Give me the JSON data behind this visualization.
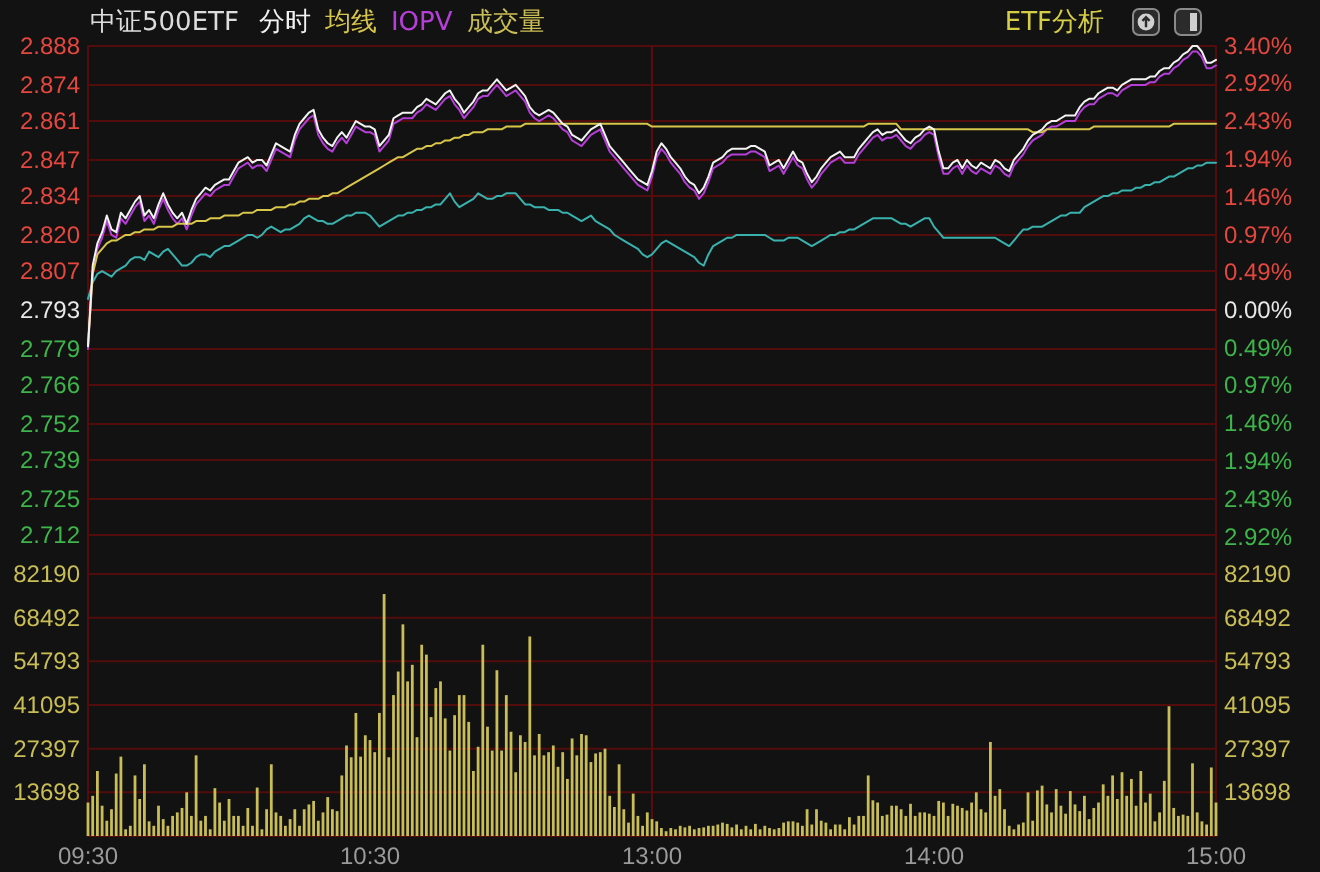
{
  "chart_data": [
    {
      "type": "line",
      "title": "中证500ETF",
      "annotations": [
        "ETF分析"
      ],
      "categories": [
        "09:30",
        null,
        null,
        null,
        null,
        null,
        null,
        null,
        null,
        null,
        null,
        null,
        null,
        null,
        null,
        null,
        null,
        null,
        null,
        null,
        null,
        null,
        null,
        null,
        null,
        null,
        null,
        null,
        null,
        null,
        null,
        null,
        null,
        null,
        null,
        null,
        null,
        null,
        null,
        null,
        null,
        null,
        null,
        null,
        null,
        null,
        null,
        null,
        null,
        null,
        null,
        null,
        null,
        null,
        null,
        null,
        null,
        null,
        null,
        null,
        "10:30",
        null,
        null,
        null,
        null,
        null,
        null,
        null,
        null,
        null,
        null,
        null,
        null,
        null,
        null,
        null,
        null,
        null,
        null,
        null,
        null,
        null,
        null,
        null,
        null,
        null,
        null,
        null,
        null,
        null,
        null,
        null,
        null,
        null,
        null,
        null,
        null,
        null,
        null,
        null,
        null,
        null,
        null,
        null,
        null,
        null,
        null,
        null,
        null,
        null,
        null,
        null,
        null,
        null,
        null,
        null,
        null,
        null,
        null,
        null,
        "13:00",
        null,
        null,
        null,
        null,
        null,
        null,
        null,
        null,
        null,
        null,
        null,
        null,
        null,
        null,
        null,
        null,
        null,
        null,
        null,
        null,
        null,
        null,
        null,
        null,
        null,
        null,
        null,
        null,
        null,
        null,
        null,
        null,
        null,
        null,
        null,
        null,
        null,
        null,
        null,
        null,
        null,
        null,
        null,
        null,
        null,
        null,
        null,
        null,
        null,
        null,
        null,
        null,
        null,
        null,
        null,
        null,
        null,
        null,
        null,
        "14:00",
        null,
        null,
        null,
        null,
        null,
        null,
        null,
        null,
        null,
        null,
        null,
        null,
        null,
        null,
        null,
        null,
        null,
        null,
        null,
        null,
        null,
        null,
        null,
        null,
        null,
        null,
        null,
        null,
        null,
        null,
        null,
        null,
        null,
        null,
        null,
        null,
        null,
        null,
        null,
        null,
        null,
        null,
        null,
        null,
        null,
        null,
        null,
        null,
        null,
        null,
        null,
        null,
        null,
        null,
        null,
        null,
        null,
        null,
        null,
        "15:00"
      ],
      "series": [
        {
          "name": "分时",
          "color": "#f2f2f2",
          "values": [
            2.78,
            2.809,
            2.817,
            2.821,
            2.827,
            2.822,
            2.821,
            2.828,
            2.826,
            2.829,
            2.832,
            2.834,
            2.827,
            2.829,
            2.826,
            2.831,
            2.835,
            2.831,
            2.828,
            2.826,
            2.828,
            2.824,
            2.829,
            2.833,
            2.835,
            2.837,
            2.836,
            2.838,
            2.839,
            2.84,
            2.84,
            2.843,
            2.846,
            2.847,
            2.848,
            2.846,
            2.847,
            2.847,
            2.845,
            2.849,
            2.853,
            2.852,
            2.851,
            2.85,
            2.856,
            2.86,
            2.862,
            2.864,
            2.865,
            2.858,
            2.855,
            2.853,
            2.852,
            2.855,
            2.857,
            2.855,
            2.858,
            2.861,
            2.86,
            2.859,
            2.859,
            2.858,
            2.852,
            2.854,
            2.856,
            2.862,
            2.863,
            2.864,
            2.864,
            2.864,
            2.866,
            2.867,
            2.869,
            2.868,
            2.867,
            2.869,
            2.871,
            2.872,
            2.869,
            2.867,
            2.864,
            2.866,
            2.868,
            2.871,
            2.872,
            2.872,
            2.874,
            2.876,
            2.874,
            2.872,
            2.873,
            2.874,
            2.872,
            2.87,
            2.866,
            2.864,
            2.863,
            2.864,
            2.865,
            2.864,
            2.862,
            2.86,
            2.859,
            2.856,
            2.855,
            2.854,
            2.856,
            2.858,
            2.859,
            2.86,
            2.856,
            2.852,
            2.85,
            2.848,
            2.846,
            2.844,
            2.842,
            2.84,
            2.839,
            2.838,
            2.843,
            2.85,
            2.853,
            2.851,
            2.848,
            2.846,
            2.844,
            2.841,
            2.839,
            2.838,
            2.835,
            2.837,
            2.841,
            2.846,
            2.847,
            2.848,
            2.85,
            2.851,
            2.851,
            2.851,
            2.851,
            2.852,
            2.852,
            2.851,
            2.85,
            2.845,
            2.846,
            2.847,
            2.844,
            2.847,
            2.85,
            2.847,
            2.846,
            2.842,
            2.839,
            2.841,
            2.844,
            2.846,
            2.848,
            2.849,
            2.85,
            2.848,
            2.848,
            2.848,
            2.851,
            2.853,
            2.855,
            2.857,
            2.858,
            2.856,
            2.857,
            2.857,
            2.858,
            2.856,
            2.854,
            2.853,
            2.855,
            2.856,
            2.858,
            2.859,
            2.858,
            2.85,
            2.844,
            2.844,
            2.846,
            2.847,
            2.844,
            2.847,
            2.845,
            2.844,
            2.846,
            2.845,
            2.844,
            2.847,
            2.846,
            2.844,
            2.843,
            2.847,
            2.849,
            2.851,
            2.854,
            2.856,
            2.857,
            2.858,
            2.86,
            2.861,
            2.861,
            2.862,
            2.863,
            2.863,
            2.863,
            2.866,
            2.868,
            2.869,
            2.869,
            2.871,
            2.872,
            2.873,
            2.873,
            2.872,
            2.874,
            2.875,
            2.876,
            2.876,
            2.876,
            2.876,
            2.877,
            2.877,
            2.879,
            2.88,
            2.88,
            2.882,
            2.883,
            2.885,
            2.886,
            2.888,
            2.888,
            2.886,
            2.882,
            2.882,
            2.883
          ]
        },
        {
          "name": "均线",
          "color": "#d8c64a",
          "values": [
            2.78,
            2.806,
            2.813,
            2.815,
            2.817,
            2.818,
            2.818,
            2.819,
            2.82,
            2.82,
            2.821,
            2.821,
            2.822,
            2.822,
            2.822,
            2.823,
            2.823,
            2.823,
            2.823,
            2.824,
            2.824,
            2.824,
            2.824,
            2.825,
            2.825,
            2.825,
            2.826,
            2.826,
            2.826,
            2.827,
            2.827,
            2.827,
            2.827,
            2.828,
            2.828,
            2.828,
            2.829,
            2.829,
            2.829,
            2.829,
            2.83,
            2.83,
            2.83,
            2.831,
            2.831,
            2.832,
            2.832,
            2.833,
            2.833,
            2.833,
            2.834,
            2.834,
            2.835,
            2.835,
            2.836,
            2.837,
            2.838,
            2.839,
            2.84,
            2.841,
            2.842,
            2.843,
            2.844,
            2.845,
            2.846,
            2.847,
            2.848,
            2.848,
            2.849,
            2.85,
            2.851,
            2.851,
            2.852,
            2.852,
            2.853,
            2.853,
            2.854,
            2.854,
            2.855,
            2.855,
            2.856,
            2.856,
            2.857,
            2.857,
            2.857,
            2.858,
            2.858,
            2.858,
            2.858,
            2.859,
            2.859,
            2.859,
            2.859,
            2.86,
            2.86,
            2.86,
            2.86,
            2.86,
            2.86,
            2.86,
            2.86,
            2.86,
            2.86,
            2.86,
            2.86,
            2.86,
            2.86,
            2.86,
            2.86,
            2.86,
            2.86,
            2.86,
            2.86,
            2.86,
            2.86,
            2.86,
            2.86,
            2.86,
            2.86,
            2.86,
            2.859,
            2.859,
            2.859,
            2.859,
            2.859,
            2.859,
            2.859,
            2.859,
            2.859,
            2.859,
            2.859,
            2.859,
            2.859,
            2.859,
            2.859,
            2.859,
            2.859,
            2.859,
            2.859,
            2.859,
            2.859,
            2.859,
            2.859,
            2.859,
            2.859,
            2.859,
            2.859,
            2.859,
            2.859,
            2.859,
            2.859,
            2.859,
            2.859,
            2.859,
            2.859,
            2.859,
            2.859,
            2.859,
            2.859,
            2.859,
            2.859,
            2.859,
            2.859,
            2.859,
            2.859,
            2.859,
            2.86,
            2.86,
            2.86,
            2.86,
            2.86,
            2.86,
            2.86,
            2.858,
            2.858,
            2.858,
            2.858,
            2.858,
            2.858,
            2.858,
            2.858,
            2.858,
            2.858,
            2.858,
            2.858,
            2.858,
            2.858,
            2.858,
            2.858,
            2.858,
            2.858,
            2.858,
            2.858,
            2.858,
            2.858,
            2.858,
            2.858,
            2.858,
            2.858,
            2.858,
            2.858,
            2.857,
            2.857,
            2.857,
            2.858,
            2.858,
            2.858,
            2.858,
            2.858,
            2.858,
            2.858,
            2.858,
            2.858,
            2.858,
            2.859,
            2.859,
            2.859,
            2.859,
            2.859,
            2.859,
            2.859,
            2.859,
            2.859,
            2.859,
            2.859,
            2.859,
            2.859,
            2.859,
            2.859,
            2.859,
            2.859,
            2.86,
            2.86,
            2.86,
            2.86,
            2.86,
            2.86,
            2.86,
            2.86,
            2.86,
            2.86
          ]
        },
        {
          "name": "IOPV",
          "color": "#b53fd8",
          "values": [
            2.779,
            2.807,
            2.815,
            2.819,
            2.825,
            2.82,
            2.819,
            2.826,
            2.824,
            2.827,
            2.83,
            2.832,
            2.825,
            2.827,
            2.824,
            2.829,
            2.833,
            2.829,
            2.826,
            2.824,
            2.826,
            2.822,
            2.827,
            2.831,
            2.833,
            2.835,
            2.834,
            2.836,
            2.837,
            2.838,
            2.838,
            2.841,
            2.844,
            2.845,
            2.846,
            2.844,
            2.845,
            2.845,
            2.843,
            2.847,
            2.851,
            2.85,
            2.849,
            2.848,
            2.854,
            2.858,
            2.86,
            2.862,
            2.863,
            2.856,
            2.853,
            2.851,
            2.85,
            2.853,
            2.855,
            2.853,
            2.856,
            2.859,
            2.858,
            2.857,
            2.857,
            2.856,
            2.85,
            2.852,
            2.854,
            2.86,
            2.861,
            2.862,
            2.862,
            2.862,
            2.864,
            2.865,
            2.867,
            2.866,
            2.865,
            2.867,
            2.869,
            2.87,
            2.867,
            2.865,
            2.862,
            2.864,
            2.866,
            2.869,
            2.87,
            2.87,
            2.872,
            2.874,
            2.872,
            2.87,
            2.871,
            2.872,
            2.87,
            2.868,
            2.864,
            2.862,
            2.861,
            2.862,
            2.863,
            2.862,
            2.86,
            2.858,
            2.857,
            2.854,
            2.853,
            2.852,
            2.854,
            2.856,
            2.857,
            2.858,
            2.854,
            2.85,
            2.848,
            2.846,
            2.844,
            2.842,
            2.84,
            2.838,
            2.837,
            2.836,
            2.841,
            2.848,
            2.851,
            2.849,
            2.846,
            2.844,
            2.842,
            2.839,
            2.837,
            2.836,
            2.833,
            2.835,
            2.839,
            2.844,
            2.845,
            2.846,
            2.848,
            2.849,
            2.849,
            2.849,
            2.849,
            2.85,
            2.85,
            2.849,
            2.848,
            2.843,
            2.844,
            2.845,
            2.842,
            2.845,
            2.848,
            2.845,
            2.844,
            2.84,
            2.837,
            2.839,
            2.842,
            2.844,
            2.846,
            2.847,
            2.848,
            2.846,
            2.846,
            2.846,
            2.849,
            2.851,
            2.853,
            2.855,
            2.856,
            2.854,
            2.855,
            2.855,
            2.856,
            2.854,
            2.852,
            2.851,
            2.853,
            2.854,
            2.856,
            2.857,
            2.856,
            2.848,
            2.842,
            2.842,
            2.844,
            2.845,
            2.842,
            2.845,
            2.843,
            2.842,
            2.844,
            2.843,
            2.842,
            2.845,
            2.844,
            2.842,
            2.841,
            2.845,
            2.847,
            2.849,
            2.852,
            2.854,
            2.855,
            2.856,
            2.858,
            2.859,
            2.859,
            2.86,
            2.861,
            2.861,
            2.861,
            2.864,
            2.866,
            2.867,
            2.867,
            2.869,
            2.87,
            2.871,
            2.871,
            2.87,
            2.872,
            2.873,
            2.874,
            2.874,
            2.874,
            2.874,
            2.875,
            2.875,
            2.877,
            2.878,
            2.878,
            2.88,
            2.881,
            2.883,
            2.884,
            2.886,
            2.886,
            2.884,
            2.88,
            2.88,
            2.881
          ]
        },
        {
          "color": "#39b2ae",
          "values": [
            2.797,
            2.803,
            2.806,
            2.807,
            2.806,
            2.805,
            2.807,
            2.808,
            2.809,
            2.811,
            2.812,
            2.812,
            2.811,
            2.814,
            2.813,
            2.812,
            2.814,
            2.815,
            2.813,
            2.811,
            2.809,
            2.809,
            2.81,
            2.812,
            2.813,
            2.813,
            2.812,
            2.814,
            2.815,
            2.816,
            2.816,
            2.817,
            2.818,
            2.819,
            2.82,
            2.82,
            2.819,
            2.82,
            2.822,
            2.823,
            2.822,
            2.821,
            2.822,
            2.822,
            2.823,
            2.824,
            2.826,
            2.827,
            2.826,
            2.825,
            2.825,
            2.824,
            2.824,
            2.825,
            2.826,
            2.827,
            2.827,
            2.828,
            2.828,
            2.828,
            2.827,
            2.825,
            2.823,
            2.824,
            2.825,
            2.826,
            2.827,
            2.827,
            2.828,
            2.828,
            2.829,
            2.829,
            2.83,
            2.83,
            2.831,
            2.831,
            2.833,
            2.835,
            2.832,
            2.83,
            2.831,
            2.832,
            2.833,
            2.835,
            2.834,
            2.833,
            2.833,
            2.834,
            2.834,
            2.835,
            2.835,
            2.835,
            2.833,
            2.831,
            2.831,
            2.83,
            2.83,
            2.83,
            2.829,
            2.829,
            2.829,
            2.828,
            2.828,
            2.827,
            2.826,
            2.825,
            2.826,
            2.827,
            2.825,
            2.824,
            2.823,
            2.822,
            2.82,
            2.819,
            2.818,
            2.817,
            2.816,
            2.815,
            2.813,
            2.812,
            2.813,
            2.815,
            2.817,
            2.818,
            2.817,
            2.816,
            2.815,
            2.814,
            2.813,
            2.812,
            2.81,
            2.809,
            2.813,
            2.816,
            2.817,
            2.818,
            2.819,
            2.819,
            2.82,
            2.82,
            2.82,
            2.82,
            2.82,
            2.82,
            2.82,
            2.819,
            2.818,
            2.818,
            2.818,
            2.819,
            2.819,
            2.819,
            2.818,
            2.817,
            2.816,
            2.817,
            2.818,
            2.819,
            2.82,
            2.82,
            2.821,
            2.821,
            2.822,
            2.822,
            2.823,
            2.824,
            2.825,
            2.826,
            2.826,
            2.826,
            2.826,
            2.826,
            2.825,
            2.824,
            2.824,
            2.823,
            2.824,
            2.825,
            2.826,
            2.826,
            2.823,
            2.821,
            2.819,
            2.819,
            2.819,
            2.819,
            2.819,
            2.819,
            2.819,
            2.819,
            2.819,
            2.819,
            2.819,
            2.819,
            2.818,
            2.817,
            2.816,
            2.818,
            2.82,
            2.822,
            2.822,
            2.823,
            2.823,
            2.823,
            2.824,
            2.825,
            2.826,
            2.827,
            2.827,
            2.828,
            2.828,
            2.828,
            2.83,
            2.831,
            2.832,
            2.833,
            2.834,
            2.834,
            2.835,
            2.835,
            2.836,
            2.836,
            2.836,
            2.837,
            2.837,
            2.838,
            2.838,
            2.839,
            2.839,
            2.84,
            2.841,
            2.841,
            2.842,
            2.843,
            2.844,
            2.844,
            2.845,
            2.845,
            2.846,
            2.846,
            2.846
          ]
        }
      ],
      "ylim": [
        2.698,
        2.888
      ],
      "yticks": [
        2.888,
        2.874,
        2.861,
        2.847,
        2.834,
        {
          "value": 2.82,
          "label": "2.820"
        },
        2.807,
        2.793,
        2.779,
        2.766,
        2.752,
        2.739,
        2.725,
        2.712
      ],
      "y2lim": [
        -3.4,
        3.4
      ],
      "y2ticks": [
        {
          "value": 3.4,
          "label": "3.40%"
        },
        {
          "value": 2.92,
          "label": "2.92%"
        },
        {
          "value": 2.43,
          "label": "2.43%"
        },
        {
          "value": 1.94,
          "label": "1.94%"
        },
        {
          "value": 1.46,
          "label": "1.46%"
        },
        {
          "value": 0.97,
          "label": "0.97%"
        },
        {
          "value": 0.49,
          "label": "0.49%"
        },
        {
          "value": 0,
          "label": "0.00%"
        },
        {
          "value": -0.49,
          "label": "0.49%"
        },
        {
          "value": -0.97,
          "label": "0.97%"
        },
        {
          "value": -1.46,
          "label": "1.46%"
        },
        {
          "value": -1.94,
          "label": "1.94%"
        },
        {
          "value": -2.43,
          "label": "2.43%"
        },
        {
          "value": -2.92,
          "label": "2.92%"
        }
      ],
      "tick_labels": "y",
      "grid": "y",
      "legend": "top left",
      "marker": "none",
      "ref_lines": [
        {
          "axis": "x",
          "value": "13:00",
          "color": "#5a0c0c"
        },
        {
          "axis": "y2",
          "value": 0,
          "color": "#8e1616"
        }
      ]
    },
    {
      "type": "bar",
      "categories": [
        "09:30",
        null,
        null,
        null,
        null,
        null,
        null,
        null,
        null,
        null,
        null,
        null,
        null,
        null,
        null,
        null,
        null,
        null,
        null,
        null,
        null,
        null,
        null,
        null,
        null,
        null,
        null,
        null,
        null,
        null,
        null,
        null,
        null,
        null,
        null,
        null,
        null,
        null,
        null,
        null,
        null,
        null,
        null,
        null,
        null,
        null,
        null,
        null,
        null,
        null,
        null,
        null,
        null,
        null,
        null,
        null,
        null,
        null,
        null,
        null,
        "10:30",
        null,
        null,
        null,
        null,
        null,
        null,
        null,
        null,
        null,
        null,
        null,
        null,
        null,
        null,
        null,
        null,
        null,
        null,
        null,
        null,
        null,
        null,
        null,
        null,
        null,
        null,
        null,
        null,
        null,
        null,
        null,
        null,
        null,
        null,
        null,
        null,
        null,
        null,
        null,
        null,
        null,
        null,
        null,
        null,
        null,
        null,
        null,
        null,
        null,
        null,
        null,
        null,
        null,
        null,
        null,
        null,
        null,
        null,
        null,
        "13:00",
        null,
        null,
        null,
        null,
        null,
        null,
        null,
        null,
        null,
        null,
        null,
        null,
        null,
        null,
        null,
        null,
        null,
        null,
        null,
        null,
        null,
        null,
        null,
        null,
        null,
        null,
        null,
        null,
        null,
        null,
        null,
        null,
        null,
        null,
        null,
        null,
        null,
        null,
        null,
        null,
        null,
        null,
        null,
        null,
        null,
        null,
        null,
        null,
        null,
        null,
        null,
        null,
        null,
        null,
        null,
        null,
        null,
        null,
        null,
        "14:00",
        null,
        null,
        null,
        null,
        null,
        null,
        null,
        null,
        null,
        null,
        null,
        null,
        null,
        null,
        null,
        null,
        null,
        null,
        null,
        null,
        null,
        null,
        null,
        null,
        null,
        null,
        null,
        null,
        null,
        null,
        null,
        null,
        null,
        null,
        null,
        null,
        null,
        null,
        null,
        null,
        null,
        null,
        null,
        null,
        null,
        null,
        null,
        null,
        null,
        null,
        null,
        null,
        null,
        null,
        null,
        null,
        null,
        null,
        null,
        "15:00"
      ],
      "series": [
        {
          "name": "成交量",
          "color": "#c9bd55",
          "values": [
            10500,
            12600,
            20400,
            9500,
            4800,
            8400,
            19600,
            24900,
            2100,
            3200,
            19000,
            11600,
            22500,
            4600,
            3200,
            9500,
            5300,
            3200,
            6300,
            7400,
            8800,
            13700,
            6300,
            25300,
            4800,
            6300,
            2100,
            15000,
            10500,
            4800,
            11600,
            6300,
            6300,
            3200,
            8800,
            3200,
            15200,
            2100,
            8400,
            22500,
            7400,
            6300,
            3200,
            5300,
            8400,
            3200,
            8400,
            9900,
            11000,
            4800,
            7400,
            12200,
            8400,
            7800,
            19000,
            28400,
            24700,
            38600,
            24900,
            31600,
            30100,
            26300,
            38600,
            75900,
            24700,
            44200,
            51600,
            66400,
            48500,
            53700,
            31000,
            60000,
            56900,
            37300,
            46400,
            48500,
            36900,
            26800,
            37900,
            44200,
            44200,
            35800,
            20400,
            28000,
            60000,
            34300,
            26800,
            52000,
            26800,
            44200,
            32700,
            20000,
            31600,
            29500,
            62600,
            25300,
            32000,
            25300,
            26300,
            28400,
            21700,
            26300,
            17900,
            30600,
            25300,
            32000,
            31600,
            23200,
            25900,
            26300,
            27400,
            12600,
            9100,
            22500,
            8400,
            4200,
            13300,
            6300,
            3200,
            7400,
            5300,
            4600,
            2500,
            1500,
            2500,
            2100,
            3200,
            2700,
            3200,
            2100,
            2500,
            2700,
            3200,
            3200,
            3600,
            4200,
            3800,
            2700,
            3600,
            2100,
            3200,
            2100,
            3800,
            2100,
            3200,
            2500,
            2100,
            2500,
            4200,
            4600,
            4600,
            4200,
            3200,
            8400,
            3600,
            8400,
            4800,
            4200,
            2100,
            3600,
            3600,
            2100,
            5900,
            3600,
            6300,
            6300,
            19000,
            11200,
            10500,
            6300,
            6700,
            9500,
            9500,
            8400,
            6300,
            10100,
            6300,
            7400,
            7400,
            7000,
            6300,
            11000,
            10500,
            6300,
            10100,
            9500,
            8800,
            8000,
            10500,
            13700,
            8400,
            7400,
            29500,
            12600,
            14700,
            8400,
            3200,
            2100,
            3600,
            4200,
            13700,
            4800,
            14300,
            15800,
            9900,
            7400,
            14700,
            9500,
            7000,
            14100,
            9900,
            7800,
            12600,
            5300,
            8800,
            10500,
            16200,
            12600,
            19000,
            11600,
            20000,
            12600,
            17900,
            9500,
            20400,
            10500,
            13300,
            4600,
            7400,
            17300,
            40700,
            8800,
            6300,
            6700,
            6300,
            22800,
            7400,
            4600,
            3600,
            21500,
            10500
          ]
        }
      ],
      "ylim": [
        0,
        82190
      ],
      "yticks": [
        13698,
        27397,
        41095,
        54793,
        68492,
        82190
      ],
      "y2lim": [
        0,
        82190
      ],
      "y2ticks": [
        13698,
        27397,
        41095,
        54793,
        68492,
        82190
      ],
      "grid": "y",
      "ref_lines": [
        {
          "axis": "x",
          "value": "13:00",
          "color": "#5a0c0c"
        }
      ]
    }
  ]
}
